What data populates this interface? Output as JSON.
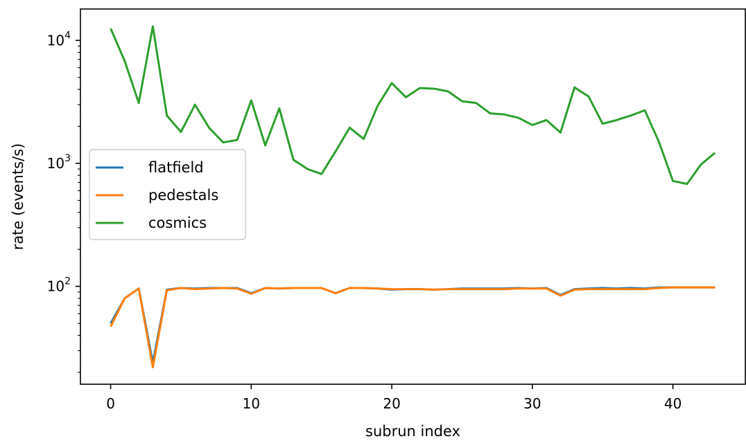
{
  "chart_data": {
    "type": "line",
    "xlabel": "subrun index",
    "ylabel": "rate (events/s)",
    "yscale": "log",
    "xlim": [
      -2.15,
      45.15
    ],
    "ylim": [
      16,
      18000
    ],
    "x_ticks": [
      0,
      10,
      20,
      30,
      40
    ],
    "y_ticks": [
      {
        "value": 100,
        "base": "10",
        "exp": "2"
      },
      {
        "value": 1000,
        "base": "10",
        "exp": "3"
      },
      {
        "value": 10000,
        "base": "10",
        "exp": "4"
      }
    ],
    "grid": false,
    "legend_position": "center-left",
    "x": [
      0,
      1,
      2,
      3,
      4,
      5,
      6,
      7,
      8,
      9,
      10,
      11,
      12,
      13,
      14,
      15,
      16,
      17,
      18,
      19,
      20,
      21,
      22,
      23,
      24,
      25,
      26,
      27,
      28,
      29,
      30,
      31,
      32,
      33,
      34,
      35,
      36,
      37,
      38,
      39,
      40,
      41,
      42,
      43
    ],
    "series": [
      {
        "name": "flatfield",
        "color": "#1f77b4",
        "values": [
          50,
          80,
          96,
          24,
          94,
          97,
          96,
          97,
          97,
          97,
          88,
          97,
          96,
          97,
          97,
          97,
          88,
          97,
          97,
          96,
          94,
          95,
          95,
          94,
          95,
          96,
          96,
          96,
          96,
          97,
          96,
          97,
          85,
          95,
          96,
          97,
          96,
          97,
          96,
          98,
          98,
          98,
          98,
          98
        ]
      },
      {
        "name": "pedestals",
        "color": "#ff7f0e",
        "values": [
          47,
          80,
          96,
          22,
          93,
          97,
          95,
          96,
          97,
          96,
          87,
          97,
          96,
          97,
          97,
          97,
          88,
          97,
          97,
          96,
          95,
          95,
          95,
          94,
          95,
          95,
          95,
          95,
          95,
          96,
          96,
          96,
          84,
          94,
          95,
          95,
          95,
          95,
          95,
          97,
          98,
          98,
          98,
          98
        ]
      },
      {
        "name": "cosmics",
        "color": "#2ca02c",
        "values": [
          12500,
          6800,
          3100,
          13000,
          2450,
          1800,
          3000,
          1950,
          1480,
          1550,
          3250,
          1400,
          2800,
          1070,
          900,
          820,
          1250,
          1950,
          1580,
          2950,
          4500,
          3450,
          4100,
          4050,
          3850,
          3200,
          3100,
          2550,
          2500,
          2350,
          2050,
          2250,
          1780,
          4150,
          3500,
          2100,
          2250,
          2450,
          2700,
          1500,
          720,
          680,
          980,
          1220
        ]
      }
    ]
  }
}
